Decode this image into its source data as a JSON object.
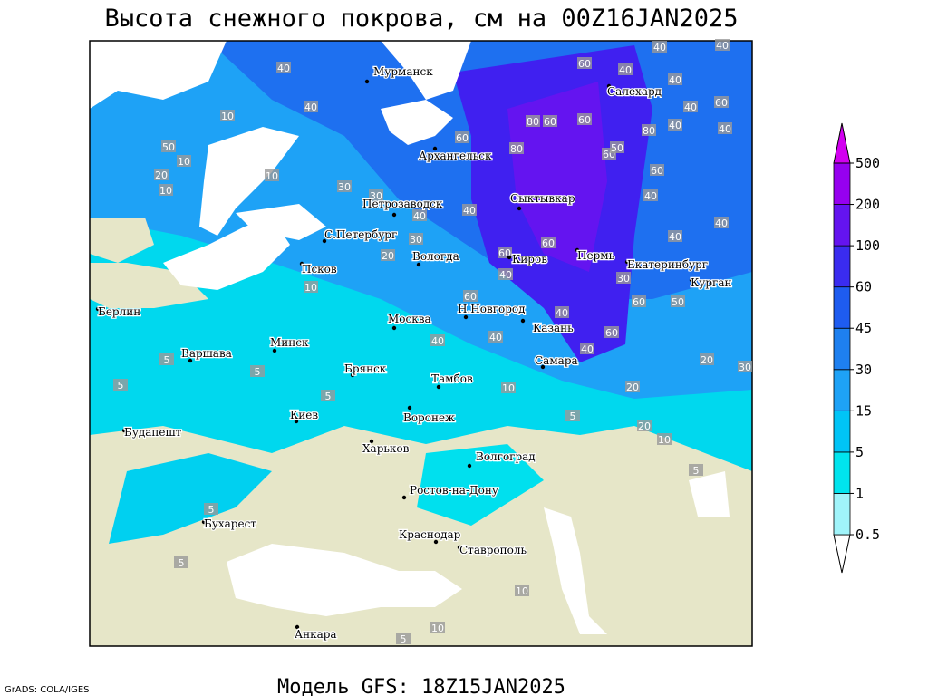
{
  "title": "Высота снежного покрова, см на 00Z16JAN2025",
  "footer": "Модель GFS: 18Z15JAN2025",
  "credit": "GrADS: COLA/IGES",
  "colorbar": {
    "levels": [
      0.5,
      1,
      5,
      15,
      30,
      45,
      60,
      100,
      200,
      500
    ],
    "colors": [
      "#ffffff",
      "#a0f4fa",
      "#00e4ee",
      "#00c4f6",
      "#1ea2f6",
      "#1e80f0",
      "#1e5cf0",
      "#3a2cf0",
      "#6414f0",
      "#9600f0",
      "#d200f0"
    ]
  },
  "cities": [
    "Мурманск",
    "Салехард",
    "Архангельск",
    "Сыктывкар",
    "Петрозаводск",
    "С.Петербург",
    "Псков",
    "Вологда",
    "Киров",
    "Пермь",
    "Екатеринбург",
    "Курган",
    "Берлин",
    "Варшава",
    "Минск",
    "Москва",
    "Н.Новгород",
    "Казань",
    "Брянск",
    "Тамбов",
    "Самара",
    "Киев",
    "Воронеж",
    "Будапешт",
    "Харьков",
    "Волгоград",
    "Ростов-на-Дону",
    "Бухарест",
    "Краснодар",
    "Ставрополь",
    "Анкара"
  ],
  "contour_labels": [
    40,
    40,
    10,
    50,
    10,
    20,
    10,
    10,
    30,
    30,
    40,
    30,
    20,
    10,
    40,
    60,
    80,
    80,
    60,
    60,
    60,
    50,
    80,
    40,
    40,
    60,
    40,
    40,
    40,
    40,
    40,
    60,
    60,
    40,
    40,
    40,
    60,
    60,
    40,
    60,
    30,
    60,
    50,
    40,
    60,
    40,
    40,
    40,
    10,
    20,
    20,
    30,
    5,
    20,
    10,
    5,
    5,
    5,
    5,
    5,
    5,
    5,
    10,
    10,
    5
  ]
}
